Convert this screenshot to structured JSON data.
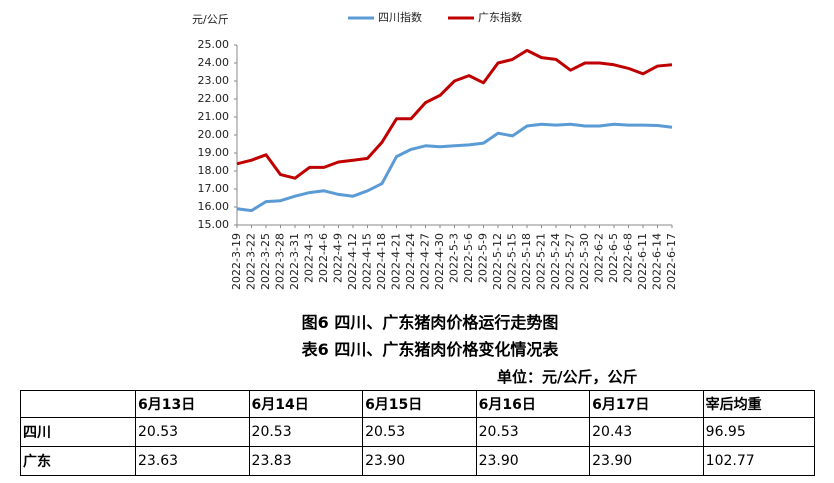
{
  "chart_data": {
    "type": "line",
    "y_unit": "元/公斤",
    "categories": [
      "2022-3-19",
      "2022-3-22",
      "2022-3-25",
      "2022-3-28",
      "2022-3-31",
      "2022-4-3",
      "2022-4-6",
      "2022-4-9",
      "2022-4-12",
      "2022-4-15",
      "2022-4-18",
      "2022-4-21",
      "2022-4-24",
      "2022-4-27",
      "2022-4-30",
      "2022-5-3",
      "2022-5-6",
      "2022-5-9",
      "2022-5-12",
      "2022-5-15",
      "2022-5-18",
      "2022-5-21",
      "2022-5-24",
      "2022-5-27",
      "2022-5-30",
      "2022-6-2",
      "2022-6-5",
      "2022-6-8",
      "2022-6-11",
      "2022-6-14",
      "2022-6-17"
    ],
    "series": [
      {
        "name": "四川指数",
        "color": "#5b9bd5",
        "values": [
          15.9,
          15.8,
          16.3,
          16.35,
          16.6,
          16.8,
          16.9,
          16.7,
          16.6,
          16.9,
          17.3,
          18.8,
          19.2,
          19.4,
          19.35,
          19.4,
          19.45,
          19.55,
          20.1,
          19.95,
          20.5,
          20.6,
          20.55,
          20.6,
          20.5,
          20.5,
          20.6,
          20.55,
          20.55,
          20.53,
          20.43
        ]
      },
      {
        "name": "广东指数",
        "color": "#c00000",
        "values": [
          18.4,
          18.6,
          18.9,
          17.8,
          17.6,
          18.2,
          18.2,
          18.5,
          18.6,
          18.7,
          19.6,
          20.9,
          20.9,
          21.8,
          22.2,
          23.0,
          23.3,
          22.9,
          24.0,
          24.2,
          24.7,
          24.3,
          24.2,
          23.6,
          24.0,
          24.0,
          23.9,
          23.7,
          23.4,
          23.83,
          23.9
        ]
      }
    ],
    "ylim": [
      15,
      25
    ],
    "yticks": [
      {
        "value": 15,
        "label": "15.00"
      },
      {
        "value": 16,
        "label": "16.00"
      },
      {
        "value": 17,
        "label": "17.00"
      },
      {
        "value": 18,
        "label": "18.00"
      },
      {
        "value": 19,
        "label": "19.00"
      },
      {
        "value": 20,
        "label": "20.00"
      },
      {
        "value": 21,
        "label": "21.00"
      },
      {
        "value": 22,
        "label": "22.00"
      },
      {
        "value": 23,
        "label": "23.00"
      },
      {
        "value": 24,
        "label": "24.00"
      },
      {
        "value": 25,
        "label": "25.00"
      }
    ],
    "grid": false
  },
  "captions": [
    "图6 四川、广东猪肉价格运行走势图",
    "表6 四川、广东猪肉价格变化情况表"
  ],
  "table": {
    "unit": "单位：元/公斤，公斤",
    "header": [
      "6月13日",
      "6月14日",
      "6月15日",
      "6月16日",
      "6月17日",
      "宰后均重"
    ],
    "rows": [
      [
        "四川",
        "20.53",
        "20.53",
        "20.53",
        "20.53",
        "20.43",
        "96.95"
      ],
      [
        "广东",
        "23.63",
        "23.83",
        "23.90",
        "23.90",
        "23.90",
        "102.77"
      ]
    ]
  }
}
